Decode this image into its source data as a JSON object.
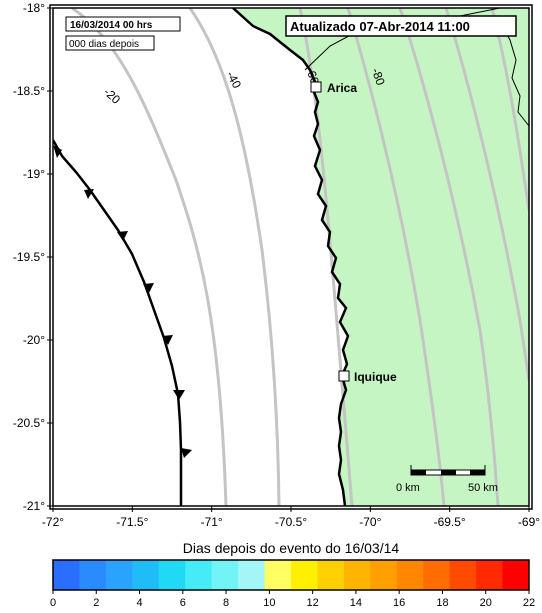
{
  "map": {
    "lon_ticks": [
      {
        "lon": -72,
        "label": "-72°"
      },
      {
        "lon": -71.5,
        "label": "-71.5°"
      },
      {
        "lon": -71,
        "label": "-71°"
      },
      {
        "lon": -70.5,
        "label": "-70.5°"
      },
      {
        "lon": -70,
        "label": "-70°"
      },
      {
        "lon": -69.5,
        "label": "-69.5°"
      },
      {
        "lon": -69,
        "label": "-69°"
      }
    ],
    "lat_ticks": [
      {
        "lat": -18,
        "label": "-18°"
      },
      {
        "lat": -18.5,
        "label": "-18.5°"
      },
      {
        "lat": -19,
        "label": "-19°"
      },
      {
        "lat": -19.5,
        "label": "-19.5°"
      },
      {
        "lat": -20,
        "label": "-20°"
      },
      {
        "lat": -20.5,
        "label": "-20.5°"
      },
      {
        "lat": -21,
        "label": "-21°"
      }
    ],
    "colors": {
      "land": "#c6f5c4",
      "ocean": "#ffffff",
      "contour": "#c4c4c4",
      "coast": "#000000"
    },
    "date_box": {
      "line1": "16/03/2014  00 hrs",
      "line2": "000 dias depois"
    },
    "updated_label": "Atualizado 07-Abr-2014 11:00",
    "contours": [
      {
        "label": "-20"
      },
      {
        "label": "-40"
      },
      {
        "label": "-60"
      },
      {
        "label": "-80"
      }
    ],
    "cities": [
      {
        "name": "Arica",
        "lon": -70.31,
        "lat": -18.48
      },
      {
        "name": "Iquique",
        "lon": -70.14,
        "lat": -20.21
      }
    ],
    "scale_bar": {
      "start_label": "0 km",
      "end_label": "50 km"
    }
  },
  "colorbar": {
    "title": "Dias depois do evento do 16/03/14",
    "min": 0,
    "max": 22,
    "tick_labels": [
      "0",
      "2",
      "4",
      "6",
      "8",
      "10",
      "12",
      "14",
      "16",
      "18",
      "20",
      "22"
    ],
    "colors": [
      "#2a6dff",
      "#2a8bff",
      "#2aa3ff",
      "#1ebdf7",
      "#1fd9f5",
      "#45ecf7",
      "#72f3f5",
      "#a4f6f6",
      "#ffff63",
      "#fff000",
      "#ffd000",
      "#ffb400",
      "#ff9f00",
      "#ff8700",
      "#ff6d00",
      "#ff4a00",
      "#ff2a00",
      "#ff0000"
    ]
  }
}
